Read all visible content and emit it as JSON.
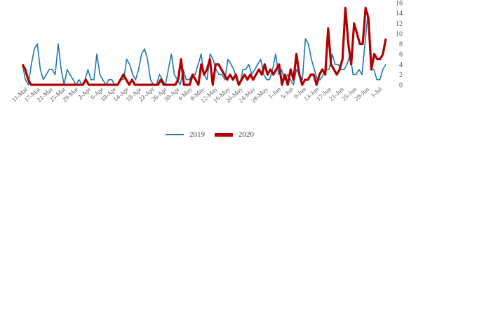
{
  "chart_data": {
    "type": "line",
    "ylim": [
      0,
      16
    ],
    "yticks": [
      0,
      2,
      4,
      6,
      8,
      10,
      12,
      14,
      16
    ],
    "x_tick_labels": [
      "11-Mar",
      "17-Mar",
      "21-Mar",
      "25-Mar",
      "29-Mar",
      "2-Apr",
      "6-Apr",
      "10-Apr",
      "14-Apr",
      "18-Apr",
      "22-Apr",
      "26-Apr",
      "30-Apr",
      "4-May",
      "8-May",
      "12-May",
      "16-May",
      "20-May",
      "24-May",
      "28-May",
      "1-Jun",
      "5-Jun",
      "9-Jun",
      "13-Jun",
      "17-Jun",
      "21-Jun",
      "25-Jun",
      "29-Jun",
      "3-Jul"
    ],
    "series": [
      {
        "name": "2019",
        "color": "#1f77b4",
        "values": [
          4,
          1,
          0,
          4,
          7,
          8,
          3,
          1,
          2,
          3,
          3,
          2,
          8,
          3,
          0,
          3,
          2,
          1,
          0,
          1,
          0,
          1,
          3,
          1,
          1,
          6,
          2,
          1,
          0,
          1,
          1,
          0,
          0,
          1,
          1,
          5,
          4,
          2,
          1,
          3,
          6,
          7,
          5,
          1,
          0,
          0,
          2,
          1,
          0,
          3,
          6,
          2,
          1,
          0,
          3,
          1,
          1,
          2,
          2,
          4,
          6,
          2,
          1,
          6,
          5,
          3,
          2,
          2,
          1,
          5,
          4,
          3,
          1,
          0,
          3,
          3,
          4,
          2,
          3,
          4,
          5,
          2,
          1,
          1,
          3,
          6,
          2,
          3,
          1,
          2,
          1,
          0,
          3,
          2,
          1,
          9,
          8,
          5,
          3,
          1,
          1,
          2,
          3,
          3,
          6,
          4,
          4,
          3,
          3,
          4,
          6,
          2,
          2,
          3,
          2,
          8,
          14,
          3,
          3,
          1,
          1,
          3,
          4
        ]
      },
      {
        "name": "2020",
        "color": "#b00000",
        "values": [
          4,
          3,
          1,
          0,
          0,
          0,
          0,
          0,
          0,
          0,
          0,
          0,
          0,
          0,
          0,
          0,
          0,
          0,
          0,
          0,
          0,
          0,
          1,
          0,
          0,
          0,
          0,
          0,
          0,
          0,
          0,
          0,
          0,
          0,
          1,
          2,
          1,
          0,
          1,
          0,
          0,
          0,
          0,
          0,
          0,
          0,
          0,
          0,
          1,
          0,
          0,
          0,
          0,
          0,
          1,
          5,
          0,
          0,
          0,
          2,
          1,
          0,
          4,
          2,
          3,
          5,
          0,
          4,
          4,
          3,
          2,
          1,
          2,
          1,
          2,
          0,
          1,
          2,
          1,
          2,
          1,
          2,
          3,
          2,
          4,
          2,
          3,
          2,
          3,
          4,
          0,
          2,
          0,
          3,
          1,
          6,
          2,
          0,
          1,
          1,
          2,
          2,
          0,
          2,
          3,
          2,
          11,
          4,
          3,
          2,
          3,
          5,
          15,
          8,
          4,
          12,
          10,
          8,
          8,
          15,
          13,
          3,
          6,
          5,
          5,
          6,
          9
        ]
      }
    ],
    "legend": "bottom"
  }
}
